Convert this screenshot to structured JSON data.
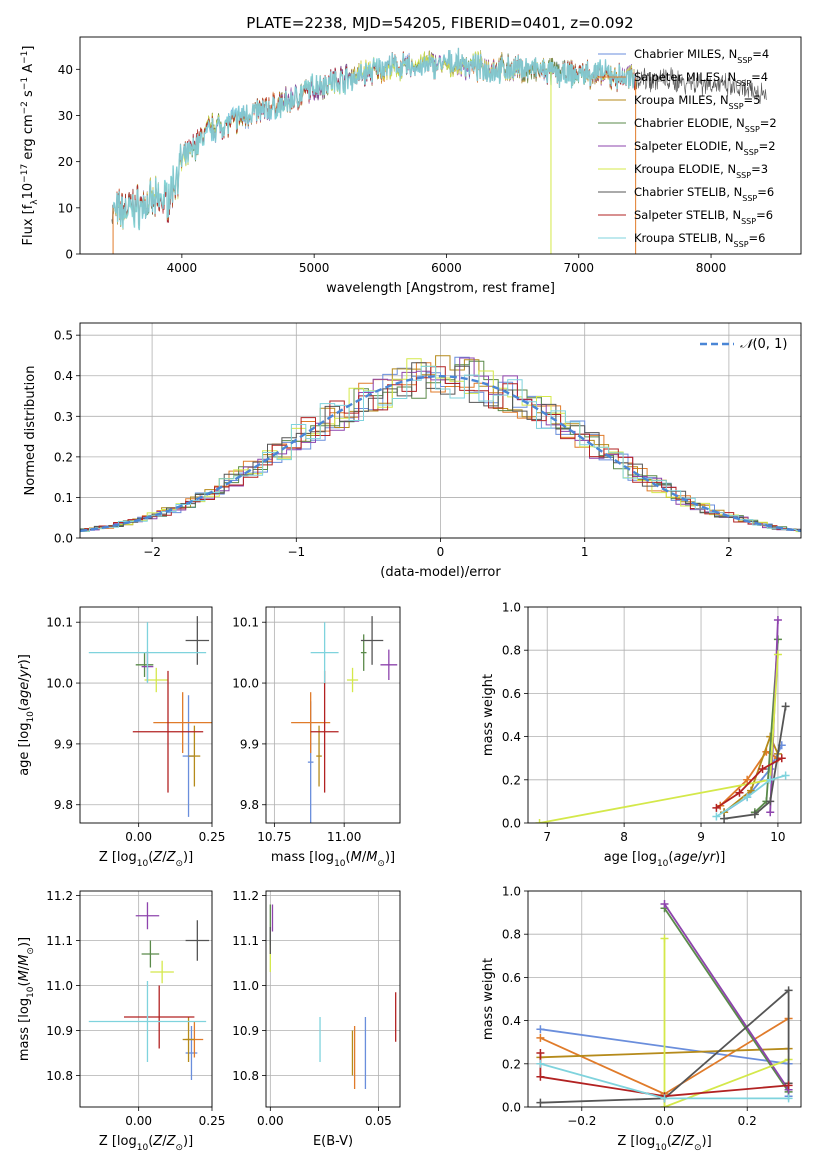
{
  "title": "PLATE=2238, MJD=54205, FIBERID=0401, z=0.092",
  "models": [
    {
      "label": "Chabrier MILES, N",
      "sub": "SSP",
      "n": "=4",
      "color": "#6a8edc"
    },
    {
      "label": "Salpeter MILES, N",
      "sub": "SSP",
      "n": "=4",
      "color": "#e07b2a"
    },
    {
      "label": "Kroupa MILES, N",
      "sub": "SSP",
      "n": "=5",
      "color": "#b58a1a"
    },
    {
      "label": "Chabrier ELODIE, N",
      "sub": "SSP",
      "n": "=2",
      "color": "#5a8a4a"
    },
    {
      "label": "Salpeter ELODIE, N",
      "sub": "SSP",
      "n": "=2",
      "color": "#8e44ad"
    },
    {
      "label": "Kroupa ELODIE, N",
      "sub": "SSP",
      "n": "=3",
      "color": "#d4e84a"
    },
    {
      "label": "Chabrier STELIB, N",
      "sub": "SSP",
      "n": "=6",
      "color": "#555555"
    },
    {
      "label": "Salpeter STELIB, N",
      "sub": "SSP",
      "n": "=6",
      "color": "#b22222"
    },
    {
      "label": "Kroupa STELIB, N",
      "sub": "SSP",
      "n": "=6",
      "color": "#7fd3dd"
    }
  ],
  "chart_data": [
    {
      "id": "spectrum",
      "type": "line",
      "xlabel": "wavelength [Angstrom, rest frame]",
      "ylabel": "Flux [f_λ 10^-17 erg cm^-2 s^-1 A^-1]",
      "xlim": [
        3230,
        8680
      ],
      "ylim": [
        0,
        47
      ],
      "xticks": [
        4000,
        5000,
        6000,
        7000,
        8000
      ],
      "yticks": [
        0,
        10,
        20,
        30,
        40
      ],
      "grid": false,
      "legend": "top-right",
      "continuum": {
        "x": [
          3470,
          3900,
          4000,
          4200,
          4500,
          4800,
          5000,
          5200,
          5500,
          5800,
          6000,
          6500,
          7000,
          7500,
          8000,
          8300
        ],
        "y": [
          9,
          12,
          20,
          27,
          30,
          33,
          36,
          38,
          40,
          41,
          41,
          40,
          39,
          38,
          37,
          35
        ]
      },
      "model_range": [
        3480,
        7440
      ],
      "data_range": [
        3470,
        8420
      ]
    },
    {
      "id": "residuals",
      "type": "histogram",
      "xlabel": "(data-model)/error",
      "ylabel": "Normed distribution",
      "xlim": [
        -2.5,
        2.5
      ],
      "ylim": [
        0,
        0.53
      ],
      "xticks": [
        -2,
        -1,
        0,
        1,
        2
      ],
      "yticks": [
        0.0,
        0.1,
        0.2,
        0.3,
        0.4,
        0.5
      ],
      "grid": true,
      "legend": "top-right",
      "reference": {
        "name": "N(0,1)",
        "color": "#4a86d6"
      },
      "bin_width": 0.1
    },
    {
      "id": "age-vs-Z",
      "type": "scatter",
      "xlabel": "Z [log10(Z/Z⊙)]",
      "ylabel": "age [log10(age/yr)]",
      "xlim": [
        -0.2,
        0.25
      ],
      "ylim": [
        9.77,
        10.125
      ],
      "xticks": [
        0.0,
        0.25
      ],
      "yticks": [
        9.8,
        9.9,
        10.0,
        10.1
      ],
      "grid": true,
      "points": [
        {
          "x": 0.17,
          "y": 9.88,
          "xerr": 0.02,
          "yerr": 0.1
        },
        {
          "x": 0.15,
          "y": 9.935,
          "xerr": 0.1,
          "yerr": 0.05
        },
        {
          "x": 0.19,
          "y": 9.88,
          "xerr": 0.02,
          "yerr": 0.05
        },
        {
          "x": 0.02,
          "y": 10.03,
          "xerr": 0.03,
          "yerr": 0.02
        },
        {
          "x": 0.03,
          "y": 10.027,
          "xerr": 0.02,
          "yerr": 0.025
        },
        {
          "x": 0.06,
          "y": 10.005,
          "xerr": 0.04,
          "yerr": 0.02
        },
        {
          "x": 0.2,
          "y": 10.07,
          "xerr": 0.04,
          "yerr": 0.04
        },
        {
          "x": 0.1,
          "y": 9.92,
          "xerr": 0.12,
          "yerr": 0.1
        },
        {
          "x": 0.03,
          "y": 10.05,
          "xerr": 0.2,
          "yerr": 0.05
        }
      ]
    },
    {
      "id": "age-vs-mass",
      "type": "scatter",
      "xlabel": "mass [log10(M/M⊙)]",
      "ylabel": "",
      "xlim": [
        10.72,
        11.2
      ],
      "ylim": [
        9.77,
        10.125
      ],
      "xticks": [
        10.75,
        11.0
      ],
      "yticks": [
        9.8,
        9.9,
        10.0,
        10.1
      ],
      "grid": true,
      "points": [
        {
          "x": 10.88,
          "y": 9.87,
          "xerr": 0.01,
          "yerr": 0.1
        },
        {
          "x": 10.88,
          "y": 9.935,
          "xerr": 0.07,
          "yerr": 0.05
        },
        {
          "x": 10.91,
          "y": 9.88,
          "xerr": 0.01,
          "yerr": 0.05
        },
        {
          "x": 11.07,
          "y": 10.05,
          "xerr": 0.01,
          "yerr": 0.03
        },
        {
          "x": 11.16,
          "y": 10.03,
          "xerr": 0.03,
          "yerr": 0.025
        },
        {
          "x": 11.03,
          "y": 10.005,
          "xerr": 0.02,
          "yerr": 0.02
        },
        {
          "x": 11.1,
          "y": 10.07,
          "xerr": 0.04,
          "yerr": 0.04
        },
        {
          "x": 10.93,
          "y": 9.92,
          "xerr": 0.05,
          "yerr": 0.1
        },
        {
          "x": 10.93,
          "y": 10.05,
          "xerr": 0.05,
          "yerr": 0.05
        }
      ]
    },
    {
      "id": "weight-vs-age",
      "type": "line",
      "xlabel": "age [log10(age/yr)]",
      "ylabel": "mass weight",
      "xlim": [
        6.75,
        10.3
      ],
      "ylim": [
        0,
        1.0
      ],
      "xticks": [
        7,
        8,
        9,
        10
      ],
      "yticks": [
        0.0,
        0.2,
        0.4,
        0.6,
        0.8,
        1.0
      ],
      "grid": true,
      "series": [
        {
          "x": [
            9.3,
            9.6,
            9.9,
            10.05
          ],
          "y": [
            0.05,
            0.12,
            0.25,
            0.36
          ]
        },
        {
          "x": [
            9.25,
            9.6,
            9.85,
            10.0
          ],
          "y": [
            0.08,
            0.2,
            0.33,
            0.3
          ]
        },
        {
          "x": [
            9.3,
            9.65,
            9.9,
            10.0
          ],
          "y": [
            0.05,
            0.15,
            0.4,
            0.32
          ]
        },
        {
          "x": [
            9.7,
            9.85,
            10.0
          ],
          "y": [
            0.05,
            0.1,
            0.85
          ]
        },
        {
          "x": [
            9.9,
            10.0
          ],
          "y": [
            0.05,
            0.94
          ]
        },
        {
          "x": [
            6.9,
            9.9,
            10.0
          ],
          "y": [
            0.0,
            0.2,
            0.78
          ]
        },
        {
          "x": [
            9.3,
            9.7,
            9.9,
            10.1
          ],
          "y": [
            0.02,
            0.04,
            0.1,
            0.54
          ]
        },
        {
          "x": [
            9.2,
            9.5,
            9.8,
            10.05
          ],
          "y": [
            0.07,
            0.14,
            0.25,
            0.3
          ]
        },
        {
          "x": [
            9.2,
            9.6,
            9.9,
            10.1
          ],
          "y": [
            0.03,
            0.12,
            0.2,
            0.22
          ]
        }
      ]
    },
    {
      "id": "mass-vs-Z",
      "type": "scatter",
      "xlabel": "Z [log10(Z/Z⊙)]",
      "ylabel": "mass [log10(M/M⊙)]",
      "xlim": [
        -0.2,
        0.25
      ],
      "ylim": [
        10.73,
        11.21
      ],
      "xticks": [
        0.0,
        0.25
      ],
      "yticks": [
        10.8,
        10.9,
        11.0,
        11.1,
        11.2
      ],
      "grid": true,
      "points": [
        {
          "x": 0.18,
          "y": 10.85,
          "xerr": 0.02,
          "yerr": 0.06
        },
        {
          "x": 0.19,
          "y": 10.88,
          "xerr": 0.03,
          "yerr": 0.04
        },
        {
          "x": 0.17,
          "y": 10.88,
          "xerr": 0.02,
          "yerr": 0.05
        },
        {
          "x": 0.04,
          "y": 11.07,
          "xerr": 0.03,
          "yerr": 0.03
        },
        {
          "x": 0.03,
          "y": 11.155,
          "xerr": 0.04,
          "yerr": 0.03
        },
        {
          "x": 0.08,
          "y": 11.03,
          "xerr": 0.04,
          "yerr": 0.025
        },
        {
          "x": 0.2,
          "y": 11.1,
          "xerr": 0.04,
          "yerr": 0.045
        },
        {
          "x": 0.07,
          "y": 10.93,
          "xerr": 0.12,
          "yerr": 0.07
        },
        {
          "x": 0.03,
          "y": 10.92,
          "xerr": 0.2,
          "yerr": 0.09
        }
      ]
    },
    {
      "id": "mass-vs-ebv",
      "type": "scatter",
      "xlabel": "E(B-V)",
      "ylabel": "",
      "xlim": [
        -0.002,
        0.06
      ],
      "ylim": [
        10.73,
        11.21
      ],
      "xticks": [
        0.0,
        0.05
      ],
      "yticks": [
        10.8,
        10.9,
        11.0,
        11.1,
        11.2
      ],
      "grid": true,
      "points": [
        {
          "x": 0.044,
          "y": 10.85,
          "xerr": 0,
          "yerr": 0.08
        },
        {
          "x": 0.039,
          "y": 10.84,
          "xerr": 0,
          "yerr": 0.07
        },
        {
          "x": 0.038,
          "y": 10.85,
          "xerr": 0,
          "yerr": 0.05
        },
        {
          "x": 0.0,
          "y": 11.13,
          "xerr": 0,
          "yerr": 0.05
        },
        {
          "x": 0.001,
          "y": 11.15,
          "xerr": 0,
          "yerr": 0.03
        },
        {
          "x": 0.0,
          "y": 11.06,
          "xerr": 0,
          "yerr": 0.03
        },
        {
          "x": 0.0,
          "y": 11.1,
          "xerr": 0,
          "yerr": 0.03
        },
        {
          "x": 0.058,
          "y": 10.93,
          "xerr": 0,
          "yerr": 0.055
        },
        {
          "x": 0.023,
          "y": 10.88,
          "xerr": 0,
          "yerr": 0.05
        }
      ]
    },
    {
      "id": "weight-vs-Z",
      "type": "line",
      "xlabel": "Z [log10(Z/Z⊙)]",
      "ylabel": "mass weight",
      "xlim": [
        -0.33,
        0.33
      ],
      "ylim": [
        0,
        1.0
      ],
      "xticks": [
        -0.2,
        0.0,
        0.2
      ],
      "yticks": [
        0.0,
        0.2,
        0.4,
        0.6,
        0.8,
        1.0
      ],
      "grid": true,
      "series": [
        {
          "x": [
            -0.3,
            0.3,
            0.3
          ],
          "y": [
            0.36,
            0.2,
            0.05
          ]
        },
        {
          "x": [
            -0.3,
            0.0,
            0.3
          ],
          "y": [
            0.32,
            0.06,
            0.41
          ]
        },
        {
          "x": [
            -0.3,
            0.3
          ],
          "y": [
            0.23,
            0.27
          ]
        },
        {
          "x": [
            0.0,
            0.3
          ],
          "y": [
            0.92,
            0.07
          ]
        },
        {
          "x": [
            0.0,
            0.3
          ],
          "y": [
            0.94,
            0.08
          ]
        },
        {
          "x": [
            0.0,
            0.0,
            0.3
          ],
          "y": [
            0.78,
            0.0,
            0.22
          ]
        },
        {
          "x": [
            -0.3,
            0.0,
            0.3,
            0.3
          ],
          "y": [
            0.02,
            0.04,
            0.54,
            0.11
          ]
        },
        {
          "x": [
            -0.3,
            -0.3,
            0.0,
            0.3
          ],
          "y": [
            0.25,
            0.14,
            0.05,
            0.1
          ]
        },
        {
          "x": [
            -0.3,
            0.0,
            0.3
          ],
          "y": [
            0.2,
            0.04,
            0.04
          ]
        }
      ]
    }
  ]
}
